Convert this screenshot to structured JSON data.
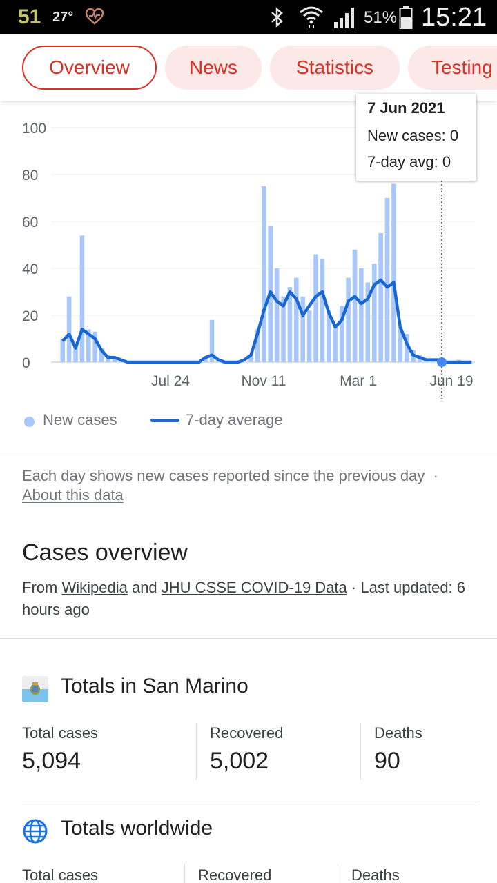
{
  "status_bar": {
    "notification_count": "51",
    "temperature": "27°",
    "battery_percent": "51%",
    "time": "15:21",
    "icons": [
      "heart-icon",
      "bluetooth-icon",
      "wifi-icon",
      "signal-icon",
      "battery-icon"
    ]
  },
  "tabs": [
    {
      "label": "Overview",
      "active": true
    },
    {
      "label": "News",
      "active": false
    },
    {
      "label": "Statistics",
      "active": false
    },
    {
      "label": "Testing",
      "active": false
    }
  ],
  "colors": {
    "accent": "#d93025",
    "tab_bg": "#fce8e6",
    "new_cases_bar": "#a8c7fa",
    "average_line": "#1967d2"
  },
  "chart_data": {
    "type": "bar",
    "series": [
      {
        "name": "New cases",
        "type": "bar"
      },
      {
        "name": "7-day average",
        "type": "line"
      }
    ],
    "x_ticks": [
      "Jul 24",
      "Nov 11",
      "Mar 1",
      "Jun 19"
    ],
    "y_ticks": [
      "100",
      "80",
      "60",
      "40",
      "20",
      "0"
    ],
    "ylim": [
      0,
      100
    ],
    "grid": true,
    "legend_position": "bottom-left",
    "new_cases_weekly": [
      10,
      28,
      8,
      54,
      14,
      13,
      6,
      3,
      2,
      1,
      0,
      0,
      0,
      0,
      0,
      0,
      0,
      0,
      0,
      0,
      0,
      0,
      2,
      18,
      1,
      0,
      0,
      0,
      0,
      3,
      14,
      75,
      58,
      40,
      28,
      32,
      36,
      28,
      22,
      46,
      44,
      22,
      16,
      24,
      36,
      48,
      40,
      34,
      42,
      55,
      70,
      76,
      15,
      12,
      5,
      3,
      1,
      1,
      1,
      0,
      0,
      1,
      0,
      0
    ],
    "avg_weekly": [
      9,
      12,
      6,
      14,
      12,
      10,
      5,
      2,
      2,
      1,
      0,
      0,
      0,
      0,
      0,
      0,
      0,
      0,
      0,
      0,
      0,
      0,
      2,
      3,
      1,
      0,
      0,
      0,
      1,
      3,
      12,
      22,
      30,
      26,
      24,
      30,
      27,
      20,
      24,
      28,
      30,
      21,
      15,
      18,
      26,
      28,
      25,
      27,
      33,
      35,
      32,
      34,
      15,
      8,
      3,
      2,
      1,
      1,
      1,
      0,
      0,
      0,
      0,
      0
    ],
    "tooltip": {
      "date": "7 Jun 2021",
      "new_cases_label": "New cases: 0",
      "avg_label": "7-day avg: 0"
    }
  },
  "legend": {
    "new_cases": "New cases",
    "average": "7-day average"
  },
  "note": {
    "text": "Each day shows new cases reported since the previous day",
    "separator": "·",
    "link": "About this data"
  },
  "overview": {
    "title": "Cases overview",
    "from": "From",
    "source1": "Wikipedia",
    "and": "and",
    "source2": "JHU CSSE COVID-19 Data",
    "updated": "· Last updated: 6 hours ago"
  },
  "san_marino": {
    "title": "Totals in San Marino",
    "total_cases_label": "Total cases",
    "total_cases": "5,094",
    "recovered_label": "Recovered",
    "recovered": "5,002",
    "deaths_label": "Deaths",
    "deaths": "90"
  },
  "worldwide": {
    "title": "Totals worldwide",
    "total_cases_label": "Total cases",
    "recovered_label": "Recovered",
    "deaths_label": "Deaths"
  }
}
